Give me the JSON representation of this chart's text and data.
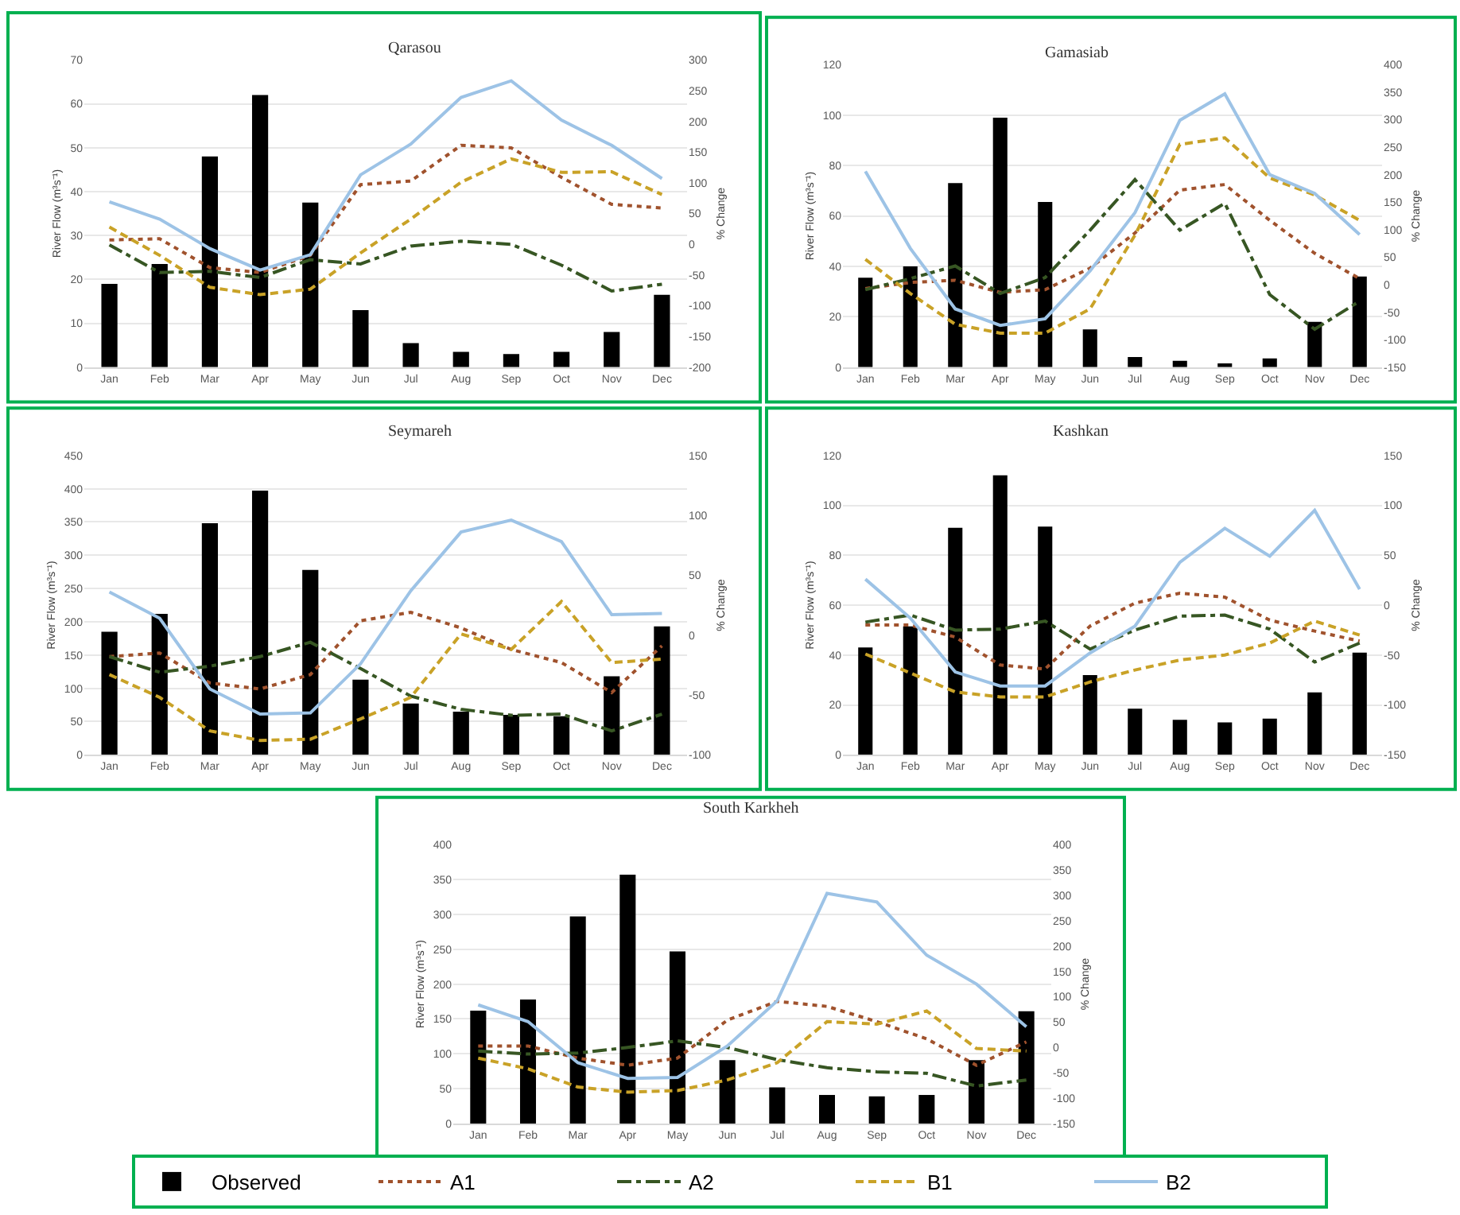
{
  "chart_data": [
    {
      "type": "bar",
      "title": "Qarasou",
      "ylabel": "River Flow (m³s⁻¹)",
      "y2label": "% Change",
      "categories": [
        "Jan",
        "Feb",
        "Mar",
        "Apr",
        "May",
        "Jun",
        "Jul",
        "Aug",
        "Sep",
        "Oct",
        "Nov",
        "Dec"
      ],
      "ylim": [
        0,
        70
      ],
      "yticks": [
        0,
        10,
        20,
        30,
        40,
        50,
        60,
        70
      ],
      "y2lim": [
        -200,
        300
      ],
      "y2ticks": [
        -200,
        -150,
        -100,
        -50,
        0,
        50,
        100,
        150,
        200,
        250,
        300
      ],
      "grid": "y",
      "legend": "bottom",
      "series": [
        {
          "name": "Observed",
          "color": "#000000",
          "values": [
            19,
            23.5,
            48,
            62,
            37.5,
            13,
            5.5,
            3.5,
            3,
            3.5,
            8,
            16.5
          ]
        },
        {
          "name": "A1",
          "type": "line",
          "axis": "y2",
          "color": "#a0522d",
          "line_style": "dotted",
          "values": [
            7,
            9,
            -38,
            -46,
            -18,
            97,
            103,
            161,
            157,
            109,
            65,
            59
          ]
        },
        {
          "name": "A2",
          "type": "line",
          "axis": "y2",
          "color": "#375623",
          "line_style": "dashdot",
          "values": [
            -1,
            -46,
            -44,
            -54,
            -25,
            -32,
            -3,
            5,
            0,
            -34,
            -76,
            -65
          ]
        },
        {
          "name": "B1",
          "type": "line",
          "axis": "y2",
          "color": "#c9a227",
          "line_style": "dashed",
          "values": [
            28,
            -18,
            -70,
            -82,
            -73,
            -14,
            41,
            101,
            139,
            117,
            118,
            81
          ]
        },
        {
          "name": "B2",
          "type": "line",
          "axis": "y2",
          "color": "#9dc3e6",
          "line_style": "solid",
          "values": [
            69,
            41,
            -7,
            -42,
            -17,
            113,
            163,
            239,
            266,
            202,
            161,
            107
          ]
        }
      ]
    },
    {
      "type": "bar",
      "title": "Gamasiab",
      "ylabel": "River Flow (m³s⁻¹)",
      "y2label": "% Change",
      "categories": [
        "Jan",
        "Feb",
        "Mar",
        "Apr",
        "May",
        "Jun",
        "Jul",
        "Aug",
        "Sep",
        "Oct",
        "Nov",
        "Dec"
      ],
      "ylim": [
        0,
        120
      ],
      "yticks": [
        0,
        20,
        40,
        60,
        80,
        100,
        120
      ],
      "y2lim": [
        -150,
        400
      ],
      "y2ticks": [
        -150,
        -100,
        -50,
        0,
        50,
        100,
        150,
        200,
        250,
        300,
        350,
        400
      ],
      "grid": "y",
      "series": [
        {
          "color": "#000000",
          "values": [
            35.5,
            40,
            73,
            99,
            65.5,
            15,
            4,
            2.5,
            1.5,
            3.5,
            18,
            36
          ]
        },
        {
          "type": "line",
          "axis": "y2",
          "color": "#a0522d",
          "line_style": "dotted",
          "values": [
            -7,
            4,
            8,
            -14,
            -9,
            30,
            94,
            172,
            182,
            117,
            57,
            11
          ]
        },
        {
          "type": "line",
          "axis": "y2",
          "color": "#375623",
          "line_style": "dashdot",
          "values": [
            -9,
            11,
            34,
            -16,
            13,
            99,
            191,
            99,
            148,
            -18,
            -81,
            -30
          ]
        },
        {
          "type": "line",
          "axis": "y2",
          "color": "#c9a227",
          "line_style": "dashed",
          "values": [
            46,
            -16,
            -72,
            -88,
            -88,
            -44,
            90,
            255,
            267,
            194,
            163,
            117
          ]
        },
        {
          "type": "line",
          "axis": "y2",
          "color": "#9dc3e6",
          "line_style": "solid",
          "values": [
            206,
            66,
            -44,
            -74,
            -62,
            25,
            131,
            299,
            347,
            200,
            166,
            91
          ]
        }
      ]
    },
    {
      "type": "bar",
      "title": "Seymareh",
      "ylabel": "River Flow (m³s⁻¹)",
      "y2label": "% Change",
      "categories": [
        "Jan",
        "Feb",
        "Mar",
        "Apr",
        "May",
        "Jun",
        "Jul",
        "Aug",
        "Sep",
        "Oct",
        "Nov",
        "Dec"
      ],
      "ylim": [
        0,
        450
      ],
      "yticks": [
        0,
        50,
        100,
        150,
        200,
        250,
        300,
        350,
        400,
        450
      ],
      "y2lim": [
        -100,
        150
      ],
      "y2ticks": [
        -100,
        -50,
        0,
        50,
        100,
        150
      ],
      "grid": "y",
      "series": [
        {
          "color": "#000000",
          "values": [
            185,
            212,
            348,
            397,
            278,
            113,
            77,
            65,
            60,
            58,
            118,
            193
          ]
        },
        {
          "type": "line",
          "axis": "y2",
          "color": "#a0522d",
          "line_style": "dotted",
          "values": [
            -18,
            -15,
            -40,
            -45,
            -33,
            12,
            19,
            6,
            -12,
            -23,
            -48,
            -9
          ]
        },
        {
          "type": "line",
          "axis": "y2",
          "color": "#375623",
          "line_style": "dashdot",
          "values": [
            -18,
            -31,
            -26,
            -18,
            -6,
            -28,
            -51,
            -62,
            -67,
            -66,
            -80,
            -66
          ]
        },
        {
          "type": "line",
          "axis": "y2",
          "color": "#c9a227",
          "line_style": "dashed",
          "values": [
            -33,
            -52,
            -80,
            -88,
            -87,
            -70,
            -52,
            1,
            -12,
            28,
            -23,
            -20
          ]
        },
        {
          "type": "line",
          "axis": "y2",
          "color": "#9dc3e6",
          "line_style": "solid",
          "values": [
            36,
            14,
            -45,
            -66,
            -65,
            -24,
            37,
            86,
            96,
            78,
            17,
            18
          ]
        }
      ]
    },
    {
      "type": "bar",
      "title": "Kashkan",
      "ylabel": "River Flow (m³s⁻¹)",
      "y2label": "% Change",
      "categories": [
        "Jan",
        "Feb",
        "Mar",
        "Apr",
        "May",
        "Jun",
        "Jul",
        "Aug",
        "Sep",
        "Oct",
        "Nov",
        "Dec"
      ],
      "ylim": [
        0,
        120
      ],
      "yticks": [
        0,
        20,
        40,
        60,
        80,
        100,
        120
      ],
      "y2lim": [
        -150,
        150
      ],
      "y2ticks": [
        -150,
        -100,
        -50,
        0,
        50,
        100,
        150
      ],
      "grid": "y",
      "series": [
        {
          "color": "#000000",
          "values": [
            43,
            51.5,
            91,
            112,
            91.5,
            32,
            18.5,
            14,
            13,
            14.5,
            25,
            41
          ]
        },
        {
          "type": "line",
          "axis": "y2",
          "color": "#a0522d",
          "line_style": "dotted",
          "values": [
            -20,
            -20,
            -32,
            -60,
            -64,
            -21,
            2,
            12,
            8,
            -15,
            -26,
            -36
          ]
        },
        {
          "type": "line",
          "axis": "y2",
          "color": "#375623",
          "line_style": "dashdot",
          "values": [
            -17,
            -10,
            -25,
            -24,
            -16,
            -44,
            -25,
            -11,
            -10,
            -24,
            -57,
            -38
          ]
        },
        {
          "type": "line",
          "axis": "y2",
          "color": "#c9a227",
          "line_style": "dashed",
          "values": [
            -49,
            -68,
            -87,
            -92,
            -92,
            -77,
            -65,
            -55,
            -50,
            -38,
            -16,
            -30
          ]
        },
        {
          "type": "line",
          "axis": "y2",
          "color": "#9dc3e6",
          "line_style": "solid",
          "values": [
            26,
            -13,
            -67,
            -81,
            -81,
            -48,
            -21,
            43,
            77,
            49,
            95,
            16
          ]
        }
      ]
    },
    {
      "type": "bar",
      "title": "South Karkheh",
      "ylabel": "River Flow (m³s⁻¹)",
      "y2label": "% Change",
      "categories": [
        "Jan",
        "Feb",
        "Mar",
        "Apr",
        "May",
        "Jun",
        "Jul",
        "Aug",
        "Sep",
        "Oct",
        "Nov",
        "Dec"
      ],
      "ylim": [
        0,
        400
      ],
      "yticks": [
        0,
        50,
        100,
        150,
        200,
        250,
        300,
        350,
        400
      ],
      "y2lim": [
        -150,
        400
      ],
      "y2ticks": [
        -150,
        -100,
        -50,
        0,
        50,
        100,
        150,
        200,
        250,
        300,
        350,
        400
      ],
      "grid": "y",
      "series": [
        {
          "color": "#000000",
          "values": [
            162,
            178,
            297,
            357,
            247,
            91,
            52,
            41,
            39,
            41,
            91,
            161
          ]
        },
        {
          "type": "line",
          "axis": "y2",
          "color": "#a0522d",
          "line_style": "dotted",
          "values": [
            3,
            3,
            -21,
            -35,
            -21,
            54,
            91,
            81,
            51,
            17,
            -35,
            11
          ]
        },
        {
          "type": "line",
          "axis": "y2",
          "color": "#375623",
          "line_style": "dashdot",
          "values": [
            -7,
            -13,
            -11,
            0,
            13,
            0,
            -24,
            -40,
            -48,
            -51,
            -76,
            -64
          ]
        },
        {
          "type": "line",
          "axis": "y2",
          "color": "#c9a227",
          "line_style": "dashed",
          "values": [
            -21,
            -42,
            -78,
            -88,
            -85,
            -64,
            -30,
            51,
            46,
            72,
            -2,
            -7
          ]
        },
        {
          "type": "line",
          "axis": "y2",
          "color": "#9dc3e6",
          "line_style": "solid",
          "values": [
            84,
            51,
            -30,
            -61,
            -59,
            3,
            92,
            304,
            287,
            182,
            125,
            41
          ]
        }
      ]
    }
  ]
}
